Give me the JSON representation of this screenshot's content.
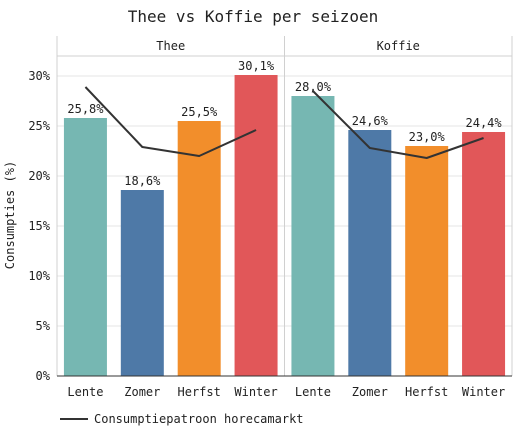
{
  "chart_data": {
    "type": "bar",
    "title": "Thee vs Koffie per seizoen",
    "ylabel": "Consumpties (%)",
    "ylim": [
      0,
      32
    ],
    "yticks": [
      0,
      5,
      10,
      15,
      20,
      25,
      30
    ],
    "ytick_suffix": "%",
    "categories": [
      "Lente",
      "Zomer",
      "Herfst",
      "Winter"
    ],
    "colors": [
      "#76b7b2",
      "#4e79a7",
      "#f28e2b",
      "#e15759"
    ],
    "line_color": "#333333",
    "grid": true,
    "legend": {
      "position": "bottom-left",
      "label": "Consumptiepatroon horecamarkt"
    },
    "panels": [
      {
        "name": "Thee",
        "values": [
          25.8,
          18.6,
          25.5,
          30.1
        ],
        "labels": [
          "25,8%",
          "18,6%",
          "25,5%",
          "30,1%"
        ],
        "line_values": [
          28.9,
          22.9,
          22.0,
          24.6
        ]
      },
      {
        "name": "Koffie",
        "values": [
          28.0,
          24.6,
          23.0,
          24.4
        ],
        "labels": [
          "28,0%",
          "24,6%",
          "23,0%",
          "24,4%"
        ],
        "line_values": [
          28.5,
          22.8,
          21.8,
          23.8
        ]
      }
    ]
  }
}
